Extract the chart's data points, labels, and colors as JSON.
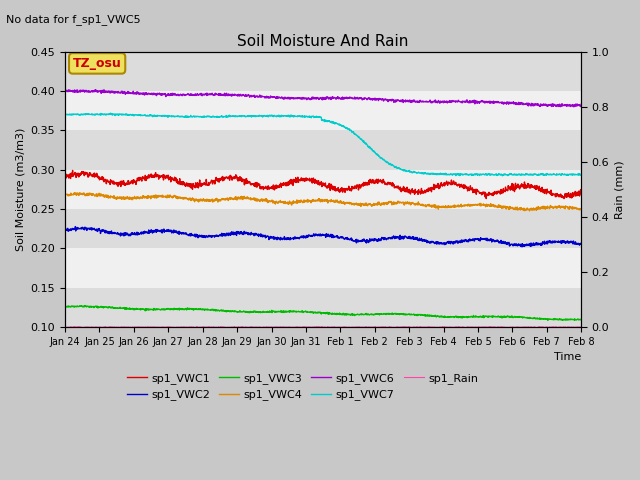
{
  "title": "Soil Moisture And Rain",
  "subtitle": "No data for f_sp1_VWC5",
  "xlabel": "Time",
  "ylabel_left": "Soil Moisture (m3/m3)",
  "ylabel_right": "Rain (mm)",
  "annotation": "TZ_osu",
  "num_points": 1500,
  "ylim_left": [
    0.1,
    0.45
  ],
  "ylim_right": [
    0.0,
    1.0
  ],
  "fig_bg_color": "#c8c8c8",
  "plot_bg_color": "#f0f0f0",
  "band_color": "#dcdcdc",
  "series": {
    "sp1_VWC1": {
      "color": "#dd0000"
    },
    "sp1_VWC2": {
      "color": "#0000cc"
    },
    "sp1_VWC3": {
      "color": "#00bb00"
    },
    "sp1_VWC4": {
      "color": "#dd8800"
    },
    "sp1_VWC6": {
      "color": "#9900cc"
    },
    "sp1_VWC7": {
      "color": "#00cccc"
    },
    "sp1_Rain": {
      "color": "#ff44aa"
    }
  },
  "tick_labels": [
    "Jan 24",
    "Jan 25",
    "Jan 26",
    "Jan 27",
    "Jan 28",
    "Jan 29",
    "Jan 30",
    "Jan 31",
    "Feb 1",
    "Feb 2",
    "Feb 3",
    "Feb 4",
    "Feb 5",
    "Feb 6",
    "Feb 7",
    "Feb 8"
  ],
  "right_ytick_labels": [
    "0.0",
    "0.2",
    "0.4",
    "0.6",
    "0.8",
    "1.0"
  ],
  "right_yticks": [
    0.0,
    0.2,
    0.4,
    0.6,
    0.8,
    1.0
  ],
  "yticks": [
    0.1,
    0.15,
    0.2,
    0.25,
    0.3,
    0.35,
    0.4,
    0.45
  ]
}
